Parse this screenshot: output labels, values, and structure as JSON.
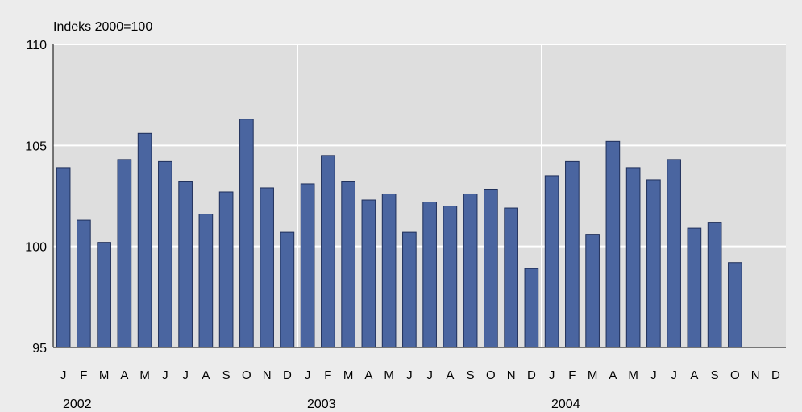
{
  "chart_data": {
    "type": "bar",
    "unit_label": "Indeks 2000=100",
    "ylim": [
      95,
      110
    ],
    "yticks": [
      "95",
      "100",
      "105",
      "110"
    ],
    "grid": true,
    "years": [
      "2002",
      "2003",
      "2004"
    ],
    "months": [
      "J",
      "F",
      "M",
      "A",
      "M",
      "J",
      "J",
      "A",
      "S",
      "O",
      "N",
      "D"
    ],
    "values": [
      103.9,
      101.3,
      100.2,
      104.3,
      105.6,
      104.2,
      103.2,
      101.6,
      102.7,
      106.3,
      102.9,
      100.7,
      103.1,
      104.5,
      103.2,
      102.3,
      102.6,
      100.7,
      102.2,
      102.0,
      102.6,
      102.8,
      101.9,
      98.9,
      103.5,
      104.2,
      100.6,
      105.2,
      103.9,
      103.3,
      104.3,
      100.9,
      101.2,
      99.2,
      null,
      null
    ],
    "colors": {
      "bar": "#4a65a0",
      "bar_stroke": "#1f2f5a",
      "plot_bg": "#dedede",
      "outer_bg": "#ececec",
      "grid": "#ffffff"
    }
  }
}
